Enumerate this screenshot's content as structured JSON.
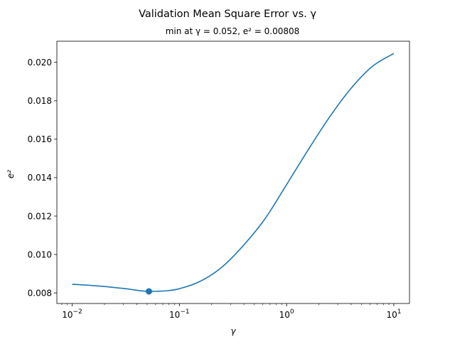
{
  "chart_data": {
    "type": "line",
    "title": "Validation Mean Square Error vs. γ",
    "subtitle": "min at γ = 0.052, e² = 0.00808",
    "xlabel": "γ",
    "ylabel": "e²",
    "xscale": "log",
    "xlim": [
      0.0072,
      14.0
    ],
    "ylim": [
      0.00745,
      0.0211
    ],
    "grid": false,
    "x_ticks": [
      {
        "value": 0.01,
        "base": "10",
        "exp": "−2"
      },
      {
        "value": 0.1,
        "base": "10",
        "exp": "−1"
      },
      {
        "value": 1,
        "base": "10",
        "exp": "0"
      },
      {
        "value": 10,
        "base": "10",
        "exp": "1"
      }
    ],
    "y_ticks": [
      {
        "value": 0.008,
        "label": "0.008"
      },
      {
        "value": 0.01,
        "label": "0.010"
      },
      {
        "value": 0.012,
        "label": "0.012"
      },
      {
        "value": 0.014,
        "label": "0.014"
      },
      {
        "value": 0.016,
        "label": "0.016"
      },
      {
        "value": 0.018,
        "label": "0.018"
      },
      {
        "value": 0.02,
        "label": "0.020"
      }
    ],
    "series": [
      {
        "color": "#1f77b4",
        "x": [
          0.01,
          0.0178,
          0.0316,
          0.052,
          0.0794,
          0.1,
          0.1585,
          0.2512,
          0.3981,
          0.631,
          1.0,
          1.585,
          2.512,
          3.981,
          6.31,
          10.0
        ],
        "y": [
          0.00845,
          0.00836,
          0.00822,
          0.00808,
          0.00812,
          0.00822,
          0.00862,
          0.00936,
          0.01049,
          0.01187,
          0.01364,
          0.01544,
          0.01715,
          0.01864,
          0.01979,
          0.02047
        ]
      }
    ],
    "markers": [
      {
        "x": 0.052,
        "y": 0.00808,
        "color": "#1f77b4"
      }
    ]
  }
}
